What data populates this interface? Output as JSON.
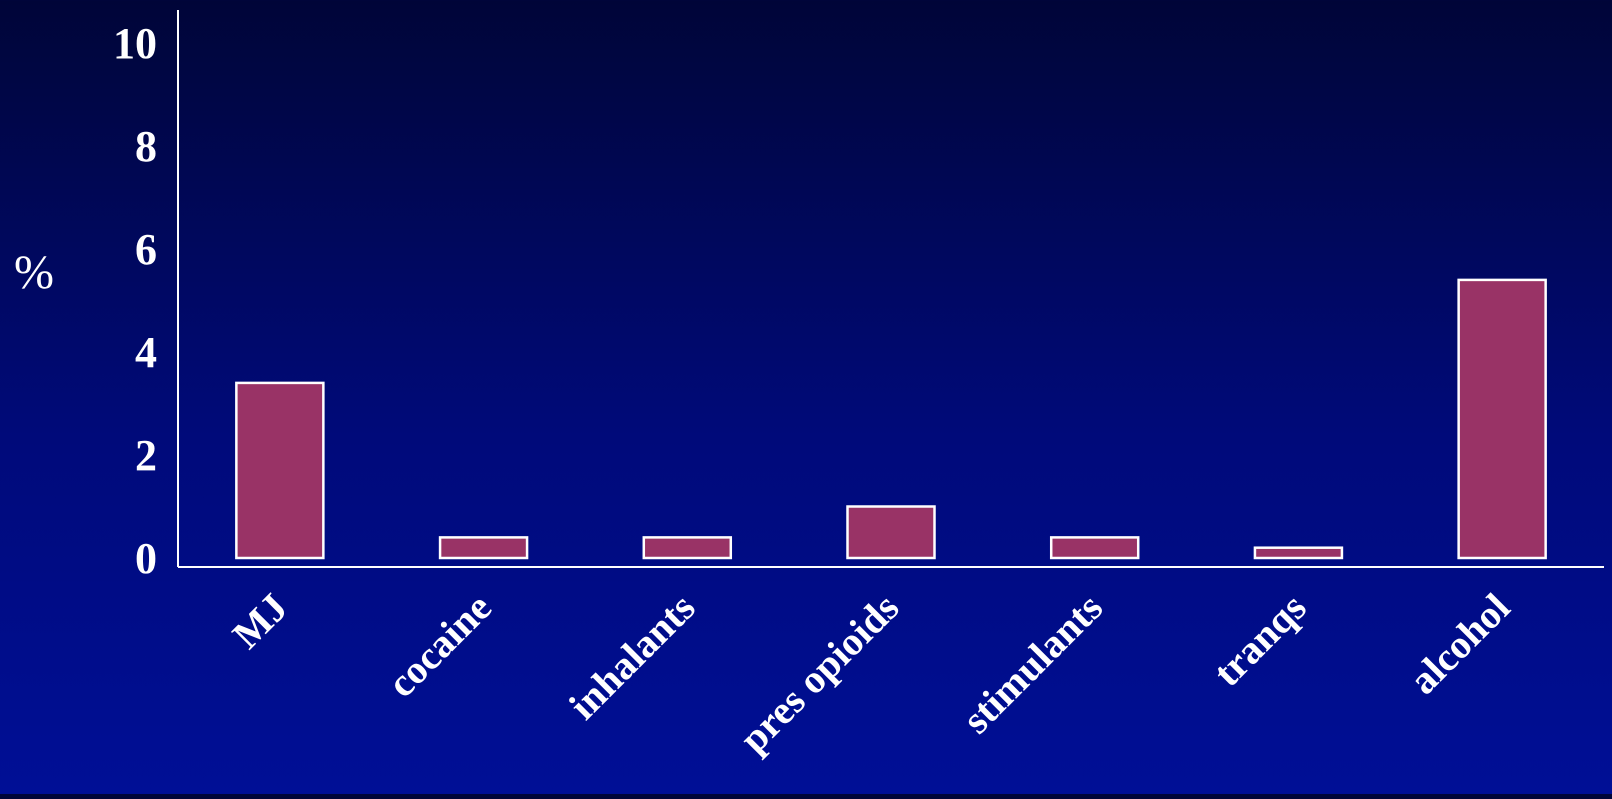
{
  "chart_data": {
    "type": "bar",
    "categories": [
      "MJ",
      "cocaine",
      "inhalants",
      "pres opioids",
      "stimulants",
      "tranqs",
      "alcohol"
    ],
    "values": [
      3.4,
      0.4,
      0.4,
      1.0,
      0.4,
      0.2,
      5.4
    ],
    "ylabel": "%",
    "ylim": [
      0,
      10
    ],
    "yticks": [
      "0",
      "2",
      "4",
      "6",
      "8",
      "10"
    ],
    "grid": false,
    "legend": "none"
  },
  "colors": {
    "bar_fill": "#993366",
    "bar_stroke": "#ffffff",
    "axis": "#ffffff",
    "text": "#ffffff"
  }
}
